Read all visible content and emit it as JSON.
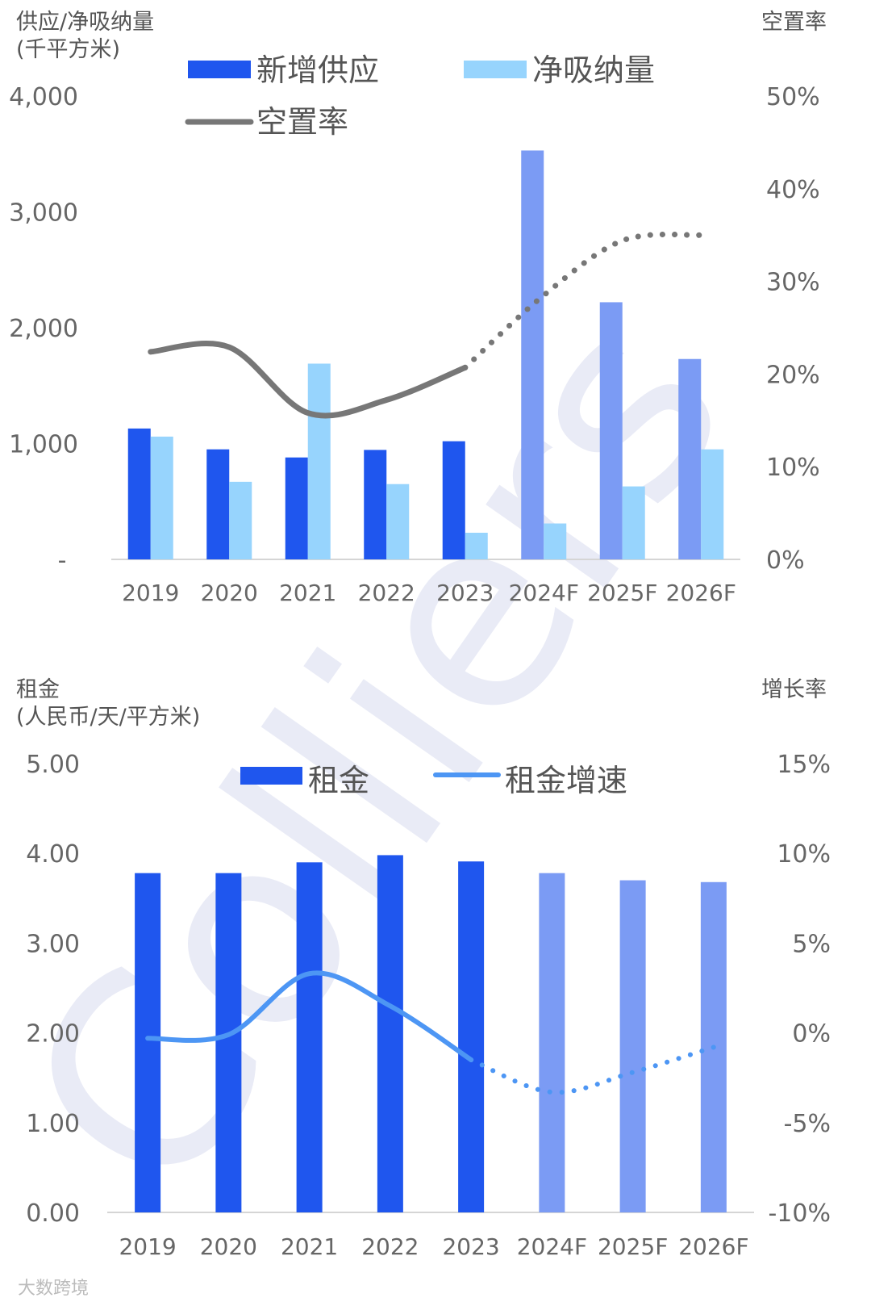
{
  "watermark": "Colliers",
  "footer_mark": "大数跨境",
  "colors": {
    "supply": "#1f56ee",
    "absorption": "#97d4fd",
    "forecast_bar": "#7b9bf4",
    "vacancy_line": "#777777",
    "rent_growth_line": "#4d96f4"
  },
  "chart_data": [
    {
      "type": "bar",
      "categories": [
        "2019",
        "2020",
        "2021",
        "2022",
        "2023",
        "2024F",
        "2025F",
        "2026F"
      ],
      "forecast_from_index": 5,
      "y_left_title_line1": "供应/净吸纳量",
      "y_left_title_line2": "(千平方米)",
      "y_right_title": "空置率",
      "ylim": [
        0,
        4000
      ],
      "y_ticks": [
        "-",
        "1,000",
        "2,000",
        "3,000",
        "4,000"
      ],
      "y2lim": [
        0,
        0.5
      ],
      "y2_ticks": [
        "0%",
        "10%",
        "20%",
        "30%",
        "40%",
        "50%"
      ],
      "legend": [
        "新增供应",
        "净吸纳量",
        "空置率"
      ],
      "series": [
        {
          "name": "新增供应",
          "kind": "bar",
          "values": [
            1130,
            950,
            880,
            945,
            1020,
            3530,
            2220,
            1730
          ]
        },
        {
          "name": "净吸纳量",
          "kind": "bar",
          "values": [
            1060,
            670,
            1690,
            650,
            230,
            310,
            630,
            950
          ]
        },
        {
          "name": "空置率",
          "kind": "line",
          "axis": "right",
          "values": [
            0.224,
            0.229,
            0.158,
            0.172,
            0.207,
            0.285,
            0.344,
            0.35
          ]
        }
      ]
    },
    {
      "type": "bar",
      "categories": [
        "2019",
        "2020",
        "2021",
        "2022",
        "2023",
        "2024F",
        "2025F",
        "2026F"
      ],
      "forecast_from_index": 5,
      "y_left_title_line1": "租金",
      "y_left_title_line2": "(人民币/天/平方米)",
      "y_right_title": "增长率",
      "ylim": [
        0,
        5
      ],
      "y_ticks": [
        "0.00",
        "1.00",
        "2.00",
        "3.00",
        "4.00",
        "5.00"
      ],
      "y2lim": [
        -0.1,
        0.15
      ],
      "y2_ticks": [
        "-10%",
        "-5%",
        "0%",
        "5%",
        "10%",
        "15%"
      ],
      "legend": [
        "租金",
        "租金增速"
      ],
      "series": [
        {
          "name": "租金",
          "kind": "bar",
          "values": [
            3.78,
            3.78,
            3.9,
            3.98,
            3.91,
            3.78,
            3.7,
            3.68
          ]
        },
        {
          "name": "租金增速",
          "kind": "line",
          "axis": "right",
          "values": [
            -0.003,
            -0.001,
            0.033,
            0.015,
            -0.015,
            -0.033,
            -0.022,
            -0.008
          ]
        }
      ]
    }
  ]
}
